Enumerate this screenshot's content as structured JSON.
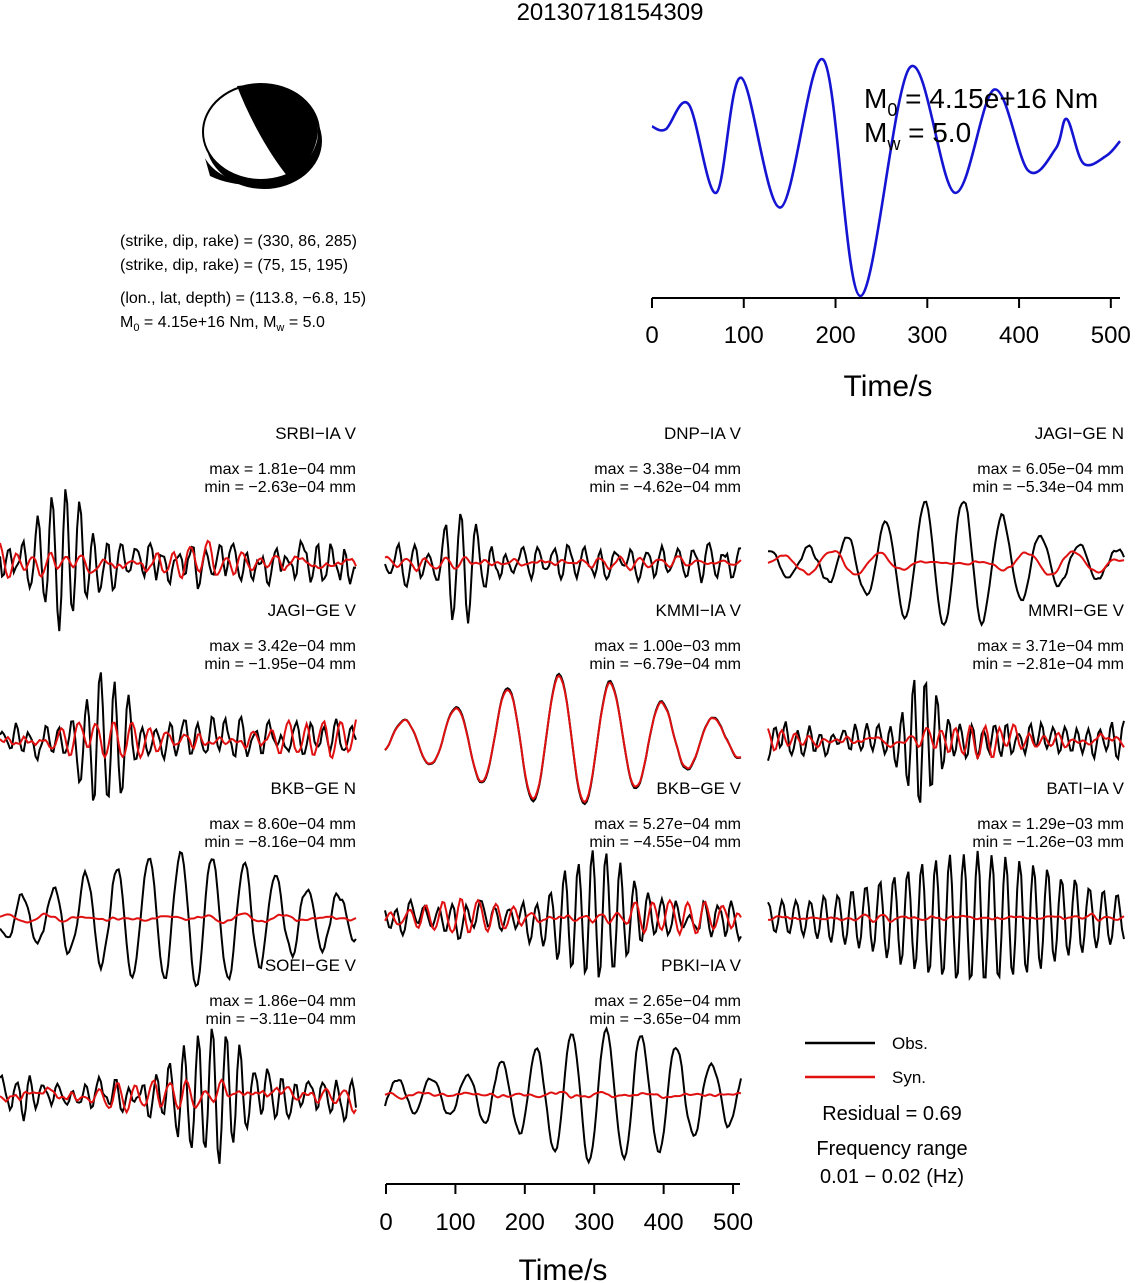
{
  "title": "20130718154309",
  "source": {
    "plane1": "(strike, dip, rake) = (330, 86, 285)",
    "plane2": "(strike, dip, rake) = (75, 15, 195)",
    "location": "(lon., lat, depth) = (113.8, −6.8, 15)",
    "moment_line": {
      "m0_prefix": "M",
      "m0_sub": "0",
      "m0_value": " = 4.15e+16 Nm, ",
      "mw_prefix": "M",
      "mw_sub": "w",
      "mw_value": " = 5.0"
    }
  },
  "stf": {
    "m0_prefix": "M",
    "m0_sub": "0",
    "m0_value": " = 4.15e+16 Nm",
    "mw_prefix": "M",
    "mw_sub": "w",
    "mw_value": " = 5.0"
  },
  "legend": {
    "obs_label": "Obs.",
    "syn_label": "Syn.",
    "residual": "Residual = 0.69",
    "freq_label": "Frequency range",
    "freq_value": "0.01 − 0.02 (Hz)"
  },
  "colors": {
    "obs": "#000000",
    "syn": "#e01010",
    "stf": "#1414d2",
    "beachball_fill": "#000000"
  },
  "chart_data": [
    {
      "type": "line",
      "name": "source-time-function",
      "xlabel": "Time/s",
      "xlim": [
        0,
        510
      ],
      "ticks": [
        0,
        100,
        200,
        300,
        400,
        500
      ],
      "series": [
        {
          "name": "",
          "x": [
            0,
            15,
            40,
            70,
            97,
            140,
            187,
            227,
            281,
            330,
            373,
            410,
            440,
            452,
            470,
            495,
            510
          ],
          "y": [
            0.55,
            0.53,
            0.7,
            0.1,
            0.88,
            0.0,
            1.0,
            -0.6,
            0.95,
            0.1,
            0.8,
            0.25,
            0.4,
            0.6,
            0.3,
            0.35,
            0.45
          ]
        }
      ]
    },
    {
      "type": "line",
      "name": "waveform-fits",
      "xlabel": "Time/s",
      "xlim": [
        0,
        510
      ],
      "ticks": [
        0,
        100,
        200,
        300,
        400,
        500
      ],
      "stations": [
        {
          "label": "SRBI−IA V",
          "max": "max = 1.81e−04 mm",
          "min": "min = −2.63e−04 mm",
          "seed": 1,
          "obs_f": 0.05,
          "obs_amp": 1.0,
          "syn_amp": 0.35,
          "obs_noise": 0.6,
          "syn_noise": 0.8,
          "burst": 90,
          "burst_w": 40
        },
        {
          "label": "DNP−IA V",
          "max": "max = 3.38e−04 mm",
          "min": "min = −4.62e−04 mm",
          "seed": 2,
          "obs_f": 0.045,
          "obs_amp": 0.9,
          "syn_amp": 0.15,
          "obs_noise": 0.4,
          "syn_noise": 0.3,
          "burst": 110,
          "burst_w": 30
        },
        {
          "label": "JAGI−GE N",
          "max": "max = 6.05e−04 mm",
          "min": "min = −5.34e−04 mm",
          "seed": 3,
          "obs_f": 0.018,
          "obs_amp": 1.0,
          "syn_amp": 0.3,
          "obs_noise": 0.15,
          "syn_noise": 0.2,
          "burst": 260,
          "burst_w": 120
        },
        {
          "label": "JAGI−GE V",
          "max": "max = 3.42e−04 mm",
          "min": "min = −1.95e−04 mm",
          "seed": 4,
          "obs_f": 0.05,
          "obs_amp": 1.0,
          "syn_amp": 0.4,
          "obs_noise": 0.5,
          "syn_noise": 0.7,
          "burst": 150,
          "burst_w": 35
        },
        {
          "label": "KMMI−IA V",
          "max": "max = 1.00e−03 mm",
          "min": "min = −6.79e−04 mm",
          "seed": 5,
          "obs_f": 0.0135,
          "obs_amp": 1.0,
          "syn_amp": 1.0,
          "obs_noise": 0.05,
          "syn_noise": 0.02,
          "burst": 260,
          "burst_w": 160,
          "fit": true
        },
        {
          "label": "MMRI−GE V",
          "max": "max = 3.71e−04 mm",
          "min": "min = −2.81e−04 mm",
          "seed": 6,
          "obs_f": 0.06,
          "obs_amp": 1.0,
          "syn_amp": 0.3,
          "obs_noise": 0.3,
          "syn_noise": 0.5,
          "burst": 220,
          "burst_w": 30
        },
        {
          "label": "BKB−GE N",
          "max": "max = 8.60e−04 mm",
          "min": "min = −8.16e−04 mm",
          "seed": 7,
          "obs_f": 0.022,
          "obs_amp": 1.0,
          "syn_amp": 0.1,
          "obs_noise": 0.25,
          "syn_noise": 0.2,
          "burst": 260,
          "burst_w": 180
        },
        {
          "label": "BKB−GE V",
          "max": "max = 5.27e−04 mm",
          "min": "min = −4.55e−04 mm",
          "seed": 8,
          "obs_f": 0.05,
          "obs_amp": 1.0,
          "syn_amp": 0.4,
          "obs_noise": 0.35,
          "syn_noise": 0.4,
          "burst": 300,
          "burst_w": 60
        },
        {
          "label": "BATI−IA V",
          "max": "max = 1.29e−03 mm",
          "min": "min = −1.26e−03 mm",
          "seed": 9,
          "obs_f": 0.05,
          "obs_amp": 1.0,
          "syn_amp": 0.05,
          "obs_noise": 0.1,
          "syn_noise": 0.2,
          "burst": 300,
          "burst_w": 160
        },
        {
          "label": "SOEI−GE V",
          "max": "max = 1.86e−04 mm",
          "min": "min = −3.11e−04 mm",
          "seed": 10,
          "obs_f": 0.05,
          "obs_amp": 1.0,
          "syn_amp": 0.35,
          "obs_noise": 0.5,
          "syn_noise": 0.6,
          "burst": 300,
          "burst_w": 60
        },
        {
          "label": "PBKI−IA V",
          "max": "max = 2.65e−04 mm",
          "min": "min = −3.65e−04 mm",
          "seed": 11,
          "obs_f": 0.02,
          "obs_amp": 1.0,
          "syn_amp": 0.05,
          "obs_noise": 0.2,
          "syn_noise": 0.2,
          "burst": 320,
          "burst_w": 150
        }
      ]
    }
  ]
}
